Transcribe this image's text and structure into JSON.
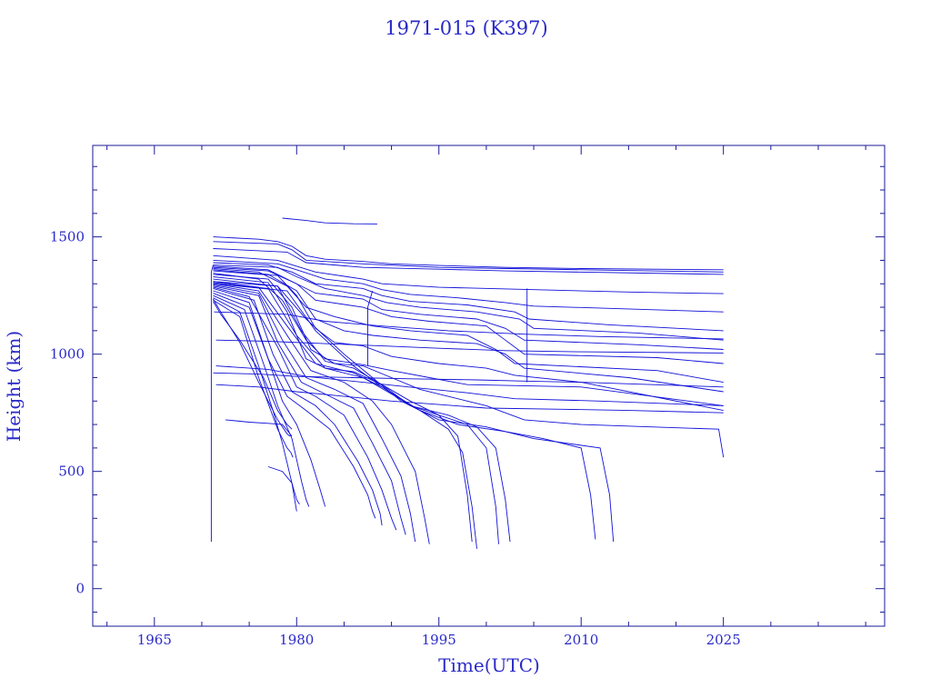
{
  "chart_data": {
    "type": "line",
    "title": "1971-015 (K397)",
    "xlabel": "Time(UTC)",
    "ylabel": "Height (km)",
    "xlim": [
      1958.5,
      2042
    ],
    "ylim": [
      -160,
      1890
    ],
    "xticks": [
      1965,
      1980,
      1995,
      2010,
      2025
    ],
    "yticks": [
      0,
      500,
      1000,
      1500
    ],
    "grid": false,
    "legend": "none",
    "line_color": "#1010d8",
    "series": [
      {
        "x": [
          1971.2,
          1976,
          1978,
          1979.5,
          1981,
          1983,
          1987,
          1990,
          1995,
          2002,
          2010,
          2025
        ],
        "y": [
          1500,
          1490,
          1480,
          1460,
          1420,
          1405,
          1395,
          1385,
          1378,
          1370,
          1365,
          1360
        ]
      },
      {
        "x": [
          1971.2,
          1978,
          1979.5,
          1981,
          1987,
          1995,
          2010,
          2025
        ],
        "y": [
          1480,
          1470,
          1445,
          1400,
          1385,
          1370,
          1360,
          1350
        ]
      },
      {
        "x": [
          1971.2,
          1979,
          1981,
          1987,
          1995,
          2002,
          2025
        ],
        "y": [
          1450,
          1435,
          1390,
          1370,
          1362,
          1355,
          1340
        ]
      },
      {
        "x": [
          1971.2,
          1978,
          1980,
          1982,
          1987,
          1989,
          1995,
          2005,
          2015,
          2025
        ],
        "y": [
          1420,
          1400,
          1375,
          1350,
          1320,
          1300,
          1285,
          1275,
          1265,
          1258
        ]
      },
      {
        "x": [
          1971.2,
          1978,
          1980,
          1983,
          1987,
          1989,
          1992,
          1997,
          2002,
          2005,
          2013,
          2025
        ],
        "y": [
          1400,
          1385,
          1360,
          1320,
          1300,
          1275,
          1255,
          1240,
          1220,
          1205,
          1195,
          1180
        ]
      },
      {
        "x": [
          1971.2,
          1977,
          1979.5,
          1982,
          1987,
          1989,
          1992,
          1998,
          2003,
          2004.5,
          2013,
          2025
        ],
        "y": [
          1390,
          1380,
          1350,
          1300,
          1280,
          1250,
          1225,
          1210,
          1180,
          1150,
          1125,
          1100
        ]
      },
      {
        "x": [
          1971.2,
          1978,
          1980,
          1983,
          1987,
          1989.5,
          1993,
          1999,
          2003.5,
          2005,
          2016,
          2025
        ],
        "y": [
          1380,
          1370,
          1330,
          1280,
          1250,
          1220,
          1200,
          1180,
          1150,
          1110,
          1090,
          1060
        ]
      },
      {
        "x": [
          1971.2,
          1977,
          1979,
          1982,
          1987,
          1989,
          1993,
          1999,
          2002,
          2004,
          2016,
          2025
        ],
        "y": [
          1375,
          1360,
          1320,
          1260,
          1235,
          1190,
          1170,
          1150,
          1110,
          1060,
          1040,
          1020
        ]
      },
      {
        "x": [
          1971.2,
          1977,
          1980,
          1982,
          1987,
          1990,
          1994,
          2000,
          2002,
          2004,
          2018,
          2025
        ],
        "y": [
          1370,
          1355,
          1300,
          1230,
          1200,
          1160,
          1140,
          1120,
          1060,
          1000,
          985,
          960
        ]
      },
      {
        "x": [
          1971.2,
          1976,
          1979,
          1981,
          1984,
          1988,
          1992,
          1998,
          2001,
          2003,
          2018,
          2025
        ],
        "y": [
          1365,
          1350,
          1290,
          1200,
          1160,
          1120,
          1100,
          1080,
          1020,
          960,
          930,
          880
        ]
      },
      {
        "x": [
          1971.2,
          1977,
          1980,
          1982,
          1985,
          1988,
          1993,
          1999,
          2002,
          2004,
          2015,
          2025
        ],
        "y": [
          1360,
          1340,
          1270,
          1150,
          1100,
          1080,
          1060,
          1045,
          1000,
          940,
          900,
          840
        ]
      },
      {
        "x": [
          1971.2,
          1978,
          1980,
          1982,
          1984,
          1987,
          1990,
          1995,
          2000,
          2003,
          2010,
          2025
        ],
        "y": [
          1355,
          1335,
          1250,
          1110,
          1050,
          1035,
          990,
          960,
          940,
          910,
          880,
          760
        ]
      },
      {
        "x": [
          1971.2,
          1976,
          1978.5,
          1981,
          1983,
          1987,
          1990,
          1994,
          1998,
          2010,
          2025
        ],
        "y": [
          1345,
          1320,
          1230,
          1060,
          980,
          955,
          930,
          900,
          870,
          860,
          780
        ]
      },
      {
        "x": [
          1971.2,
          1977,
          1979.5,
          1981.5,
          1984,
          1987,
          1990,
          1993,
          1998,
          2000,
          2004,
          2010,
          2024.5,
          2025
        ],
        "y": [
          1340,
          1320,
          1200,
          1020,
          960,
          950,
          900,
          850,
          800,
          780,
          720,
          700,
          680,
          560
        ]
      },
      {
        "x": [
          1971.2,
          1977,
          1979,
          1981,
          1983,
          1986,
          1989,
          1992,
          1995,
          1997,
          1998,
          1998.5
        ],
        "y": [
          1330,
          1305,
          1180,
          980,
          940,
          925,
          870,
          800,
          740,
          650,
          400,
          200
        ]
      },
      {
        "x": [
          1971.2,
          1978,
          1980.5,
          1983,
          1986,
          1989,
          1992,
          1995,
          1998,
          2000,
          2001,
          2001.3
        ],
        "y": [
          1320,
          1290,
          1100,
          970,
          940,
          870,
          780,
          740,
          700,
          600,
          350,
          190
        ]
      },
      {
        "x": [
          1971.2,
          1976,
          1979,
          1982,
          1986,
          1989,
          1992,
          1996,
          1999,
          2001,
          2002,
          2002.5
        ],
        "y": [
          1310,
          1285,
          1120,
          960,
          920,
          860,
          780,
          740,
          690,
          600,
          380,
          200
        ]
      },
      {
        "x": [
          1971.2,
          1977,
          1980,
          1983,
          1987,
          1990,
          1993,
          1996,
          1997.5,
          1998.5,
          1999
        ],
        "y": [
          1305,
          1280,
          1080,
          940,
          900,
          830,
          760,
          680,
          580,
          350,
          170
        ]
      },
      {
        "x": [
          1971.2,
          1976,
          1979,
          1981.5,
          1985,
          1988,
          1990,
          1992.5,
          1993.5,
          1994
        ],
        "y": [
          1300,
          1270,
          1080,
          930,
          880,
          800,
          700,
          500,
          300,
          190
        ]
      },
      {
        "x": [
          1971.2,
          1976,
          1978.5,
          1981,
          1984,
          1987,
          1989,
          1991,
          1992,
          1992.5
        ],
        "y": [
          1295,
          1260,
          1060,
          900,
          850,
          790,
          640,
          480,
          320,
          200
        ]
      },
      {
        "x": [
          1971.2,
          1976,
          1978,
          1980.5,
          1983,
          1986,
          1988,
          1990,
          1991,
          1991.5
        ],
        "y": [
          1290,
          1250,
          1050,
          880,
          830,
          770,
          620,
          460,
          300,
          230
        ]
      },
      {
        "x": [
          1971.2,
          1975,
          1978,
          1980,
          1982,
          1985,
          1987.5,
          1989,
          1990,
          1990.5
        ],
        "y": [
          1285,
          1245,
          1030,
          860,
          820,
          740,
          560,
          420,
          300,
          250
        ]
      },
      {
        "x": [
          1971.2,
          1975.5,
          1977.5,
          1979.5,
          1982,
          1984,
          1986.5,
          1988,
          1988.8,
          1989
        ],
        "y": [
          1280,
          1230,
          1000,
          840,
          780,
          700,
          540,
          420,
          320,
          270
        ]
      },
      {
        "x": [
          1971.2,
          1975,
          1977,
          1979,
          1981,
          1983.5,
          1986,
          1987.5,
          1988,
          1988.3
        ],
        "y": [
          1270,
          1220,
          980,
          820,
          760,
          680,
          520,
          400,
          330,
          300
        ]
      },
      {
        "x": [
          1971.2,
          1975,
          1977,
          1978.5,
          1980,
          1981.5,
          1982.5,
          1983
        ],
        "y": [
          1260,
          1200,
          980,
          800,
          700,
          550,
          420,
          350
        ]
      },
      {
        "x": [
          1971.2,
          1974.5,
          1976.5,
          1978,
          1979.5,
          1980.5,
          1981,
          1981.3
        ],
        "y": [
          1250,
          1190,
          960,
          780,
          640,
          460,
          380,
          350
        ]
      },
      {
        "x": [
          1971.2,
          1974,
          1976,
          1977.5,
          1978.5,
          1979.5,
          1980,
          1980.3
        ],
        "y": [
          1240,
          1180,
          950,
          760,
          620,
          450,
          380,
          360
        ]
      },
      {
        "x": [
          1971.2,
          1974,
          1976,
          1978,
          1979,
          1979.4,
          1979.6
        ],
        "y": [
          1230,
          1160,
          900,
          680,
          600,
          580,
          560
        ]
      },
      {
        "x": [
          1971.2,
          1972,
          1974,
          1976,
          1978,
          1979,
          1979.3
        ],
        "y": [
          1235,
          1180,
          1050,
          880,
          720,
          660,
          650
        ]
      },
      {
        "x": [
          1971.2,
          1972,
          1974,
          1976.5,
          1978,
          1979,
          1979.5
        ],
        "y": [
          1225,
          1170,
          1060,
          900,
          760,
          700,
          680
        ]
      },
      {
        "x": [
          1972.5,
          1975,
          1977,
          1978.5,
          1979.5
        ],
        "y": [
          720,
          710,
          705,
          700,
          650
        ]
      },
      {
        "x": [
          1977,
          1978.5,
          1979.5,
          1980
        ],
        "y": [
          520,
          500,
          450,
          330
        ]
      },
      {
        "x": [
          1978.5,
          1981,
          1983,
          1986,
          1988.5
        ],
        "y": [
          1580,
          1570,
          1560,
          1556,
          1555
        ]
      },
      {
        "x": [
          1971,
          1971,
          1971.2
        ],
        "y": [
          200,
          1350,
          1380
        ]
      },
      {
        "x": [
          1971.2,
          1976,
          1980,
          1986,
          1992,
          1999,
          2004,
          2010,
          2025
        ],
        "y": [
          920,
          915,
          905,
          900,
          895,
          890,
          885,
          880,
          860
        ]
      },
      {
        "x": [
          1971.5,
          1977,
          1981,
          1987,
          1993,
          1998,
          2003,
          2012,
          2025
        ],
        "y": [
          950,
          935,
          905,
          880,
          855,
          835,
          810,
          800,
          780
        ]
      },
      {
        "x": [
          1971.5,
          1976,
          1980,
          1985,
          1990,
          1995,
          2000,
          2008,
          2015,
          2025
        ],
        "y": [
          870,
          860,
          840,
          820,
          800,
          785,
          770,
          765,
          760,
          750
        ]
      },
      {
        "x": [
          1971.5,
          1977,
          1983,
          1989,
          1995,
          2002,
          2010,
          2025
        ],
        "y": [
          1060,
          1055,
          1045,
          1035,
          1025,
          1015,
          1010,
          1005
        ]
      },
      {
        "x": [
          1971.3,
          1979,
          1983,
          1989,
          1996,
          2004,
          2012,
          2025
        ],
        "y": [
          1180,
          1170,
          1140,
          1120,
          1100,
          1085,
          1075,
          1065
        ]
      },
      {
        "x": [
          1987.5,
          1987.5,
          1988
        ],
        "y": [
          950,
          1200,
          1270
        ]
      },
      {
        "x": [
          2004.3,
          2004.3
        ],
        "y": [
          880,
          1280
        ]
      },
      {
        "x": [
          1971.2,
          1978,
          1981,
          1985,
          1988,
          1991,
          1995,
          2000,
          2003,
          2005,
          2012,
          2013,
          2013.4
        ],
        "y": [
          1310,
          1290,
          1150,
          1000,
          900,
          800,
          720,
          690,
          660,
          640,
          600,
          400,
          200
        ]
      },
      {
        "x": [
          1971.2,
          1979,
          1982,
          1986,
          1989,
          1993,
          1997,
          2002,
          2006,
          2010,
          2011,
          2011.5
        ],
        "y": [
          1300,
          1270,
          1100,
          950,
          860,
          760,
          700,
          670,
          640,
          600,
          400,
          210
        ]
      }
    ]
  }
}
